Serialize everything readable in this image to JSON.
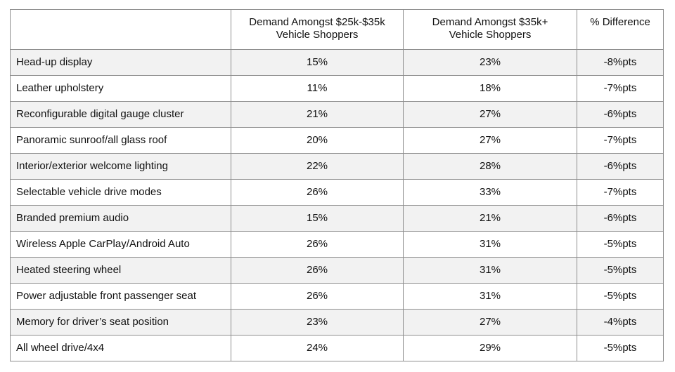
{
  "chart_data": {
    "type": "table",
    "columns": [
      "",
      "Demand Amongst $25k-$35k Vehicle Shoppers",
      "Demand Amongst $35k+ Vehicle Shoppers",
      "% Difference"
    ],
    "header_lines": [
      [],
      [
        "Demand Amongst $25k-$35k",
        "Vehicle Shoppers"
      ],
      [
        "Demand Amongst $35k+",
        "Vehicle Shoppers"
      ],
      [
        "% Difference"
      ]
    ],
    "rows": [
      [
        "Head-up display",
        "15%",
        "23%",
        "-8%pts"
      ],
      [
        "Leather upholstery",
        "11%",
        "18%",
        "-7%pts"
      ],
      [
        "Reconfigurable digital gauge cluster",
        "21%",
        "27%",
        "-6%pts"
      ],
      [
        "Panoramic sunroof/all glass roof",
        "20%",
        "27%",
        "-7%pts"
      ],
      [
        "Interior/exterior welcome lighting",
        "22%",
        "28%",
        "-6%pts"
      ],
      [
        "Selectable vehicle drive modes",
        "26%",
        "33%",
        "-7%pts"
      ],
      [
        "Branded premium audio",
        "15%",
        "21%",
        "-6%pts"
      ],
      [
        "Wireless Apple CarPlay/Android Auto",
        "26%",
        "31%",
        "-5%pts"
      ],
      [
        "Heated steering wheel",
        "26%",
        "31%",
        "-5%pts"
      ],
      [
        "Power adjustable front passenger seat",
        "26%",
        "31%",
        "-5%pts"
      ],
      [
        "Memory for driver’s seat position",
        "23%",
        "27%",
        "-4%pts"
      ],
      [
        "All wheel drive/4x4",
        "24%",
        "29%",
        "-5%pts"
      ]
    ]
  }
}
